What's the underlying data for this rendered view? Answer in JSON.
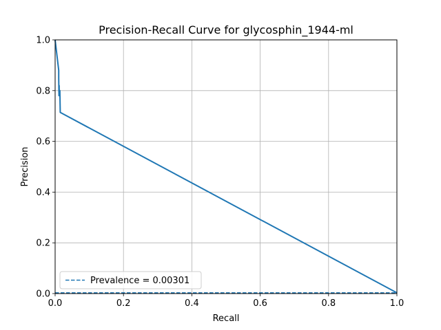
{
  "chart_data": {
    "type": "line",
    "title": "Precision-Recall Curve for glycosphin_1944-ml",
    "xlabel": "Recall",
    "ylabel": "Precision",
    "xlim": [
      0,
      1
    ],
    "ylim": [
      0,
      1
    ],
    "xticks": [
      "0.0",
      "0.2",
      "0.4",
      "0.6",
      "0.8",
      "1.0"
    ],
    "yticks": [
      "0.0",
      "0.2",
      "0.4",
      "0.6",
      "0.8",
      "1.0"
    ],
    "grid": true,
    "legend_position": "lower-left",
    "series": [
      {
        "name": "",
        "style": "solid",
        "color": "#1f77b4",
        "x": [
          0.0,
          0.0105,
          0.0105,
          0.011,
          0.0113,
          0.0118,
          0.0121,
          0.0127,
          0.0133,
          0.0139,
          0.0145,
          0.015,
          1.0
        ],
        "y": [
          1.0,
          0.88,
          0.85,
          0.8,
          0.78,
          0.82,
          0.79,
          0.8,
          0.78,
          0.8,
          0.75,
          0.714,
          0.003
        ]
      },
      {
        "name": "Prevalence = 0.00301",
        "style": "dashed",
        "color": "#1f77b4",
        "x": [
          0,
          1
        ],
        "y": [
          0.00301,
          0.00301
        ]
      }
    ]
  }
}
